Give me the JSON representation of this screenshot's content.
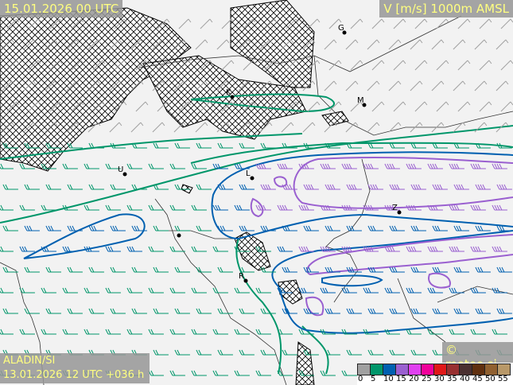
{
  "header": {
    "valid_time": "15.01.2026 00 UTC",
    "parameter": "V [m/s] 1000m AMSL"
  },
  "footer": {
    "model": "ALADIN/SI",
    "run": "13.01.2026 12 UTC +036 h",
    "copyright": "© meteo.si"
  },
  "legend": {
    "ticks": [
      "0",
      "5",
      "10",
      "15",
      "20",
      "25",
      "30",
      "35",
      "40",
      "45",
      "50",
      "55"
    ],
    "colors": [
      "#a0a0a0",
      "#00966a",
      "#0060b0",
      "#9a60d0",
      "#e040f0",
      "#f0009a",
      "#e01818",
      "#983030",
      "#4a3030",
      "#603010",
      "#906030",
      "#b89868"
    ]
  },
  "cities": [
    "G",
    "K",
    "M",
    "U",
    "L",
    "Z",
    "R"
  ],
  "colors": {
    "label_text": "#ffff80",
    "label_bg": "#969696"
  }
}
